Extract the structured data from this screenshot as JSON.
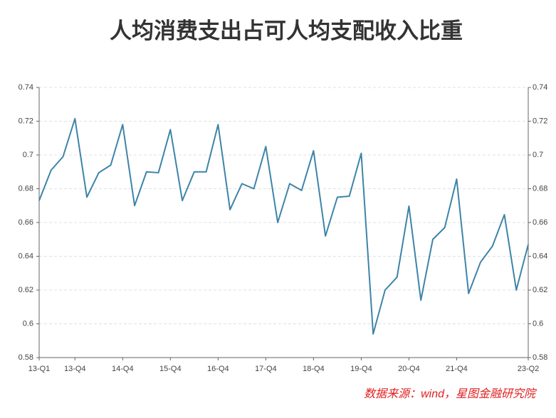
{
  "chart_data": {
    "type": "line",
    "title": "人均消费支出占可人均支配收入比重",
    "source": "数据来源：wind，星图金融研究院",
    "categories": [
      "13-Q1",
      null,
      null,
      "13-Q4",
      null,
      null,
      null,
      "14-Q4",
      null,
      null,
      null,
      "15-Q4",
      null,
      null,
      null,
      "16-Q4",
      null,
      null,
      null,
      "17-Q4",
      null,
      null,
      null,
      "18-Q4",
      null,
      null,
      null,
      "19-Q4",
      null,
      null,
      null,
      "20-Q4",
      null,
      null,
      null,
      "21-Q4",
      null,
      null,
      null,
      null,
      null,
      "23-Q2"
    ],
    "series": [
      {
        "color": "#3d84a8",
        "values": [
          0.673,
          0.691,
          0.699,
          0.7215,
          0.675,
          0.6895,
          0.694,
          0.718,
          0.67,
          0.69,
          0.6895,
          0.715,
          0.673,
          0.69,
          0.69,
          0.718,
          0.6676,
          0.683,
          0.68,
          0.705,
          0.66,
          0.683,
          0.679,
          0.7025,
          0.652,
          0.675,
          0.6756,
          0.701,
          0.594,
          0.62,
          0.6276,
          0.6697,
          0.614,
          0.65,
          0.657,
          0.6857,
          0.618,
          0.6365,
          0.646,
          0.6646,
          0.62,
          0.647
        ]
      }
    ],
    "ylim": [
      0.58,
      0.74
    ],
    "yticks": [
      0.58,
      0.6,
      0.62,
      0.64,
      0.66,
      0.68,
      0.7,
      0.72,
      0.74
    ],
    "y2lim": [
      0.58,
      0.74
    ],
    "y2ticks": [
      0.58,
      0.6,
      0.62,
      0.64,
      0.66,
      0.68,
      0.7,
      0.72,
      0.74
    ],
    "grid": true
  }
}
